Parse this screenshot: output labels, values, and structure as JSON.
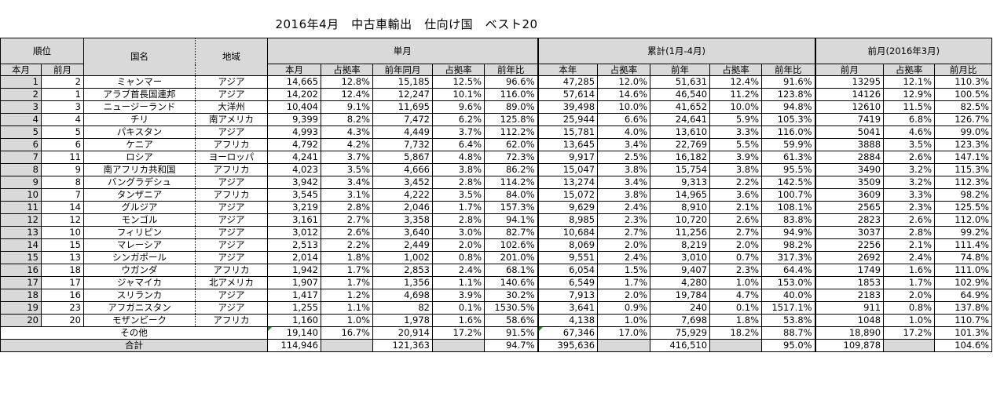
{
  "title": "2016年4月　中古車輸出　仕向け国　ベスト20",
  "headers": {
    "rank": "順位",
    "country": "国名",
    "region": "地域",
    "single": "単月",
    "cumulative": "累計(1月-4月)",
    "prevmonth": "前月(2016年3月)",
    "this_month": "本月",
    "last_month": "前月",
    "cols": [
      "本月",
      "占拠率",
      "前年同月",
      "占拠率",
      "前年比",
      "本年",
      "占拠率",
      "前年",
      "占拠率",
      "前年比",
      "前月",
      "占拠率",
      "前月比"
    ]
  },
  "rows": [
    {
      "r": "1",
      "p": "2",
      "country": "ミャンマー",
      "region": "アジア",
      "v": [
        "14,665",
        "12.8%",
        "15,185",
        "12.5%",
        "96.6%",
        "47,285",
        "12.0%",
        "51,631",
        "12.4%",
        "91.6%",
        "13295",
        "12.1%",
        "110.3%"
      ]
    },
    {
      "r": "2",
      "p": "1",
      "country": "アラブ首長国連邦",
      "region": "アジア",
      "v": [
        "14,202",
        "12.4%",
        "12,247",
        "10.1%",
        "116.0%",
        "57,614",
        "14.6%",
        "46,540",
        "11.2%",
        "123.8%",
        "14126",
        "12.9%",
        "100.5%"
      ]
    },
    {
      "r": "3",
      "p": "3",
      "country": "ニュージーランド",
      "region": "大洋州",
      "v": [
        "10,404",
        "9.1%",
        "11,695",
        "9.6%",
        "89.0%",
        "39,498",
        "10.0%",
        "41,652",
        "10.0%",
        "94.8%",
        "12610",
        "11.5%",
        "82.5%"
      ]
    },
    {
      "r": "4",
      "p": "4",
      "country": "チリ",
      "region": "南アメリカ",
      "v": [
        "9,399",
        "8.2%",
        "7,472",
        "6.2%",
        "125.8%",
        "25,944",
        "6.6%",
        "24,641",
        "5.9%",
        "105.3%",
        "7419",
        "6.8%",
        "126.7%"
      ]
    },
    {
      "r": "5",
      "p": "5",
      "country": "パキスタン",
      "region": "アジア",
      "v": [
        "4,993",
        "4.3%",
        "4,449",
        "3.7%",
        "112.2%",
        "15,781",
        "4.0%",
        "13,610",
        "3.3%",
        "116.0%",
        "5041",
        "4.6%",
        "99.0%"
      ]
    },
    {
      "r": "6",
      "p": "6",
      "country": "ケニア",
      "region": "アフリカ",
      "v": [
        "4,792",
        "4.2%",
        "7,732",
        "6.4%",
        "62.0%",
        "13,645",
        "3.4%",
        "22,769",
        "5.5%",
        "59.9%",
        "3888",
        "3.5%",
        "123.3%"
      ]
    },
    {
      "r": "7",
      "p": "11",
      "country": "ロシア",
      "region": "ヨーロッパ",
      "v": [
        "4,241",
        "3.7%",
        "5,867",
        "4.8%",
        "72.3%",
        "9,917",
        "2.5%",
        "16,182",
        "3.9%",
        "61.3%",
        "2884",
        "2.6%",
        "147.1%"
      ]
    },
    {
      "r": "8",
      "p": "9",
      "country": "南アフリカ共和国",
      "region": "アフリカ",
      "v": [
        "4,023",
        "3.5%",
        "4,666",
        "3.8%",
        "86.2%",
        "15,047",
        "3.8%",
        "15,754",
        "3.8%",
        "95.5%",
        "3490",
        "3.2%",
        "115.3%"
      ]
    },
    {
      "r": "9",
      "p": "8",
      "country": "バングラデシュ",
      "region": "アジア",
      "v": [
        "3,942",
        "3.4%",
        "3,452",
        "2.8%",
        "114.2%",
        "13,274",
        "3.4%",
        "9,313",
        "2.2%",
        "142.5%",
        "3509",
        "3.2%",
        "112.3%"
      ]
    },
    {
      "r": "10",
      "p": "7",
      "country": "タンザニア",
      "region": "アフリカ",
      "v": [
        "3,545",
        "3.1%",
        "4,222",
        "3.5%",
        "84.0%",
        "15,072",
        "3.8%",
        "14,965",
        "3.6%",
        "100.7%",
        "3609",
        "3.3%",
        "98.2%"
      ]
    },
    {
      "r": "11",
      "p": "14",
      "country": "グルジア",
      "region": "アジア",
      "v": [
        "3,219",
        "2.8%",
        "2,046",
        "1.7%",
        "157.3%",
        "9,629",
        "2.4%",
        "8,910",
        "2.1%",
        "108.1%",
        "2565",
        "2.3%",
        "125.5%"
      ]
    },
    {
      "r": "12",
      "p": "12",
      "country": "モンゴル",
      "region": "アジア",
      "v": [
        "3,161",
        "2.7%",
        "3,358",
        "2.8%",
        "94.1%",
        "8,985",
        "2.3%",
        "10,720",
        "2.6%",
        "83.8%",
        "2823",
        "2.6%",
        "112.0%"
      ]
    },
    {
      "r": "13",
      "p": "10",
      "country": "フィリピン",
      "region": "アジア",
      "v": [
        "3,012",
        "2.6%",
        "3,640",
        "3.0%",
        "82.7%",
        "10,684",
        "2.7%",
        "11,256",
        "2.7%",
        "94.9%",
        "3037",
        "2.8%",
        "99.2%"
      ]
    },
    {
      "r": "14",
      "p": "15",
      "country": "マレーシア",
      "region": "アジア",
      "v": [
        "2,513",
        "2.2%",
        "2,449",
        "2.0%",
        "102.6%",
        "8,069",
        "2.0%",
        "8,219",
        "2.0%",
        "98.2%",
        "2256",
        "2.1%",
        "111.4%"
      ]
    },
    {
      "r": "15",
      "p": "13",
      "country": "シンガポール",
      "region": "アジア",
      "v": [
        "2,014",
        "1.8%",
        "1,002",
        "0.8%",
        "201.0%",
        "9,551",
        "2.4%",
        "3,010",
        "0.7%",
        "317.3%",
        "2692",
        "2.4%",
        "74.8%"
      ]
    },
    {
      "r": "16",
      "p": "18",
      "country": "ウガンダ",
      "region": "アフリカ",
      "v": [
        "1,942",
        "1.7%",
        "2,853",
        "2.4%",
        "68.1%",
        "6,054",
        "1.5%",
        "9,407",
        "2.3%",
        "64.4%",
        "1749",
        "1.6%",
        "111.0%"
      ]
    },
    {
      "r": "17",
      "p": "17",
      "country": "ジャマイカ",
      "region": "北アメリカ",
      "v": [
        "1,907",
        "1.7%",
        "1,356",
        "1.1%",
        "140.6%",
        "6,549",
        "1.7%",
        "4,280",
        "1.0%",
        "153.0%",
        "1853",
        "1.7%",
        "102.9%"
      ]
    },
    {
      "r": "18",
      "p": "16",
      "country": "スリランカ",
      "region": "アジア",
      "v": [
        "1,417",
        "1.2%",
        "4,698",
        "3.9%",
        "30.2%",
        "7,913",
        "2.0%",
        "19,784",
        "4.7%",
        "40.0%",
        "2183",
        "2.0%",
        "64.9%"
      ]
    },
    {
      "r": "19",
      "p": "23",
      "country": "アフガニスタン",
      "region": "アジア",
      "v": [
        "1,255",
        "1.1%",
        "82",
        "0.1%",
        "1530.5%",
        "3,641",
        "0.9%",
        "240",
        "0.1%",
        "1517.1%",
        "911",
        "0.8%",
        "137.8%"
      ]
    },
    {
      "r": "20",
      "p": "20",
      "country": "モザンビーク",
      "region": "アフリカ",
      "v": [
        "1,160",
        "1.0%",
        "1,978",
        "1.6%",
        "58.6%",
        "4,138",
        "1.0%",
        "7,698",
        "1.8%",
        "53.8%",
        "1048",
        "1.0%",
        "110.7%"
      ]
    }
  ],
  "others": {
    "label": "その他",
    "v": [
      "19,140",
      "16.7%",
      "20,914",
      "17.2%",
      "91.5%",
      "67,346",
      "17.0%",
      "75,929",
      "18.2%",
      "88.7%",
      "18,890",
      "17.2%",
      "101.3%"
    ]
  },
  "total": {
    "label": "合計",
    "v": [
      "114,946",
      "",
      "121,363",
      "",
      "94.7%",
      "395,636",
      "",
      "416,510",
      "",
      "95.0%",
      "109,878",
      "",
      "104.6%"
    ]
  }
}
